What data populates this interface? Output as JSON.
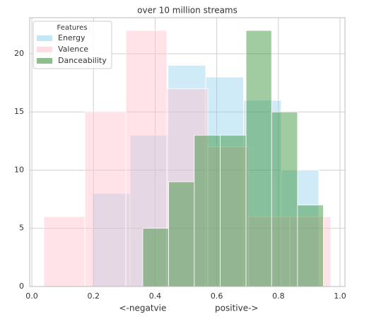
{
  "chart_data": {
    "type": "histogram",
    "title": "over 10 million streams",
    "x_label": "<-negatvie                  positive->",
    "legend_title": "Features",
    "legend": "upper left",
    "grid": true,
    "xlim": [
      -0.007,
      1.016
    ],
    "ylim": [
      0,
      23.1
    ],
    "xticks": [
      {
        "value": 0,
        "label": "0.0"
      },
      0.2,
      0.4,
      0.6,
      0.8,
      {
        "value": 1,
        "label": "1.0"
      }
    ],
    "yticks": [
      0,
      5,
      10,
      15,
      20
    ],
    "series": [
      {
        "name": "Energy",
        "color": "#87ceeb",
        "opacity": 0.4,
        "bins": [
          0.197,
          0.319,
          0.442,
          0.564,
          0.687,
          0.809,
          0.931
        ],
        "values": [
          8,
          13,
          19,
          18,
          16,
          10
        ]
      },
      {
        "name": "Valence",
        "color": "#ffc0cb",
        "opacity": 0.45,
        "bins": [
          0.039,
          0.172,
          0.305,
          0.438,
          0.571,
          0.704,
          0.837,
          0.97
        ],
        "values": [
          6,
          15,
          22,
          17,
          12,
          6,
          6
        ]
      },
      {
        "name": "Danceability",
        "color": "#2e8b2e",
        "opacity": 0.45,
        "bins": [
          0.36,
          0.444,
          0.527,
          0.611,
          0.695,
          0.778,
          0.862,
          0.946
        ],
        "values": [
          5,
          9,
          13,
          13,
          22,
          15,
          7
        ]
      }
    ]
  }
}
